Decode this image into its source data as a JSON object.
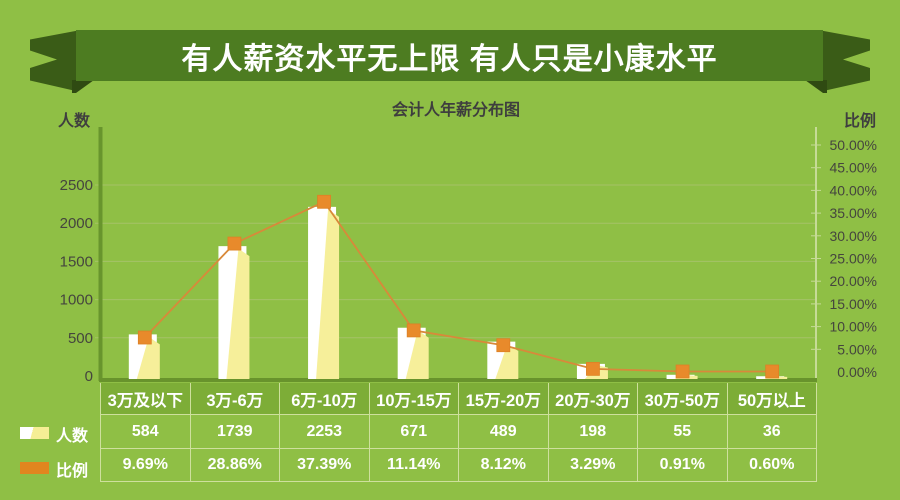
{
  "banner": {
    "title": "有人薪资水平无上限 有人只是小康水平"
  },
  "chart": {
    "title": "会计人年薪分布图",
    "left_axis_title": "人数",
    "right_axis_title": "比例"
  },
  "chart_data": {
    "type": "bar+line",
    "title": "会计人年薪分布图",
    "categories": [
      "3万及以下",
      "3万-6万",
      "6万-10万",
      "10万-15万",
      "15万-20万",
      "20万-30万",
      "30万-50万",
      "50万以上"
    ],
    "series": [
      {
        "name": "人数",
        "type": "bar",
        "axis": "left",
        "values": [
          584,
          1739,
          2253,
          671,
          489,
          198,
          55,
          36
        ]
      },
      {
        "name": "比例",
        "type": "line",
        "axis": "right",
        "unit": "%",
        "values": [
          9.69,
          28.86,
          37.39,
          11.14,
          8.12,
          3.29,
          0.91,
          0.6
        ]
      }
    ],
    "left_axis": {
      "label": "人数",
      "min": 0,
      "max": 2500,
      "step": 500
    },
    "right_axis": {
      "label": "比例",
      "min": 0,
      "max": 50,
      "step": 5,
      "unit": "%"
    },
    "grid": true,
    "legend_position": "bottom-left"
  },
  "table": {
    "rows": [
      {
        "label": "人数",
        "values": [
          "584",
          "1739",
          "2253",
          "671",
          "489",
          "198",
          "55",
          "36"
        ]
      },
      {
        "label": "比例",
        "values": [
          "9.69%",
          "28.86%",
          "37.39%",
          "11.14%",
          "8.12%",
          "3.29%",
          "0.91%",
          "0.60%"
        ]
      }
    ]
  },
  "colors": {
    "background": "#8fbf45",
    "banner_band": "#4d7c21",
    "banner_tail": "#3a5c17",
    "banner_fold": "#2f4a12",
    "bar_white": "#ffffff",
    "bar_yellow": "#f6ef9a",
    "line_orange": "#d8893a",
    "marker_orange": "#e88a2b",
    "gridline": "#a5c268",
    "left_axis_line": "#68952d",
    "right_axis_line": "#c6db97",
    "baseline": "#68932c",
    "table_border": "#cee09d",
    "table_header_bg": "#7dad37",
    "tick_text": "#45453e"
  }
}
